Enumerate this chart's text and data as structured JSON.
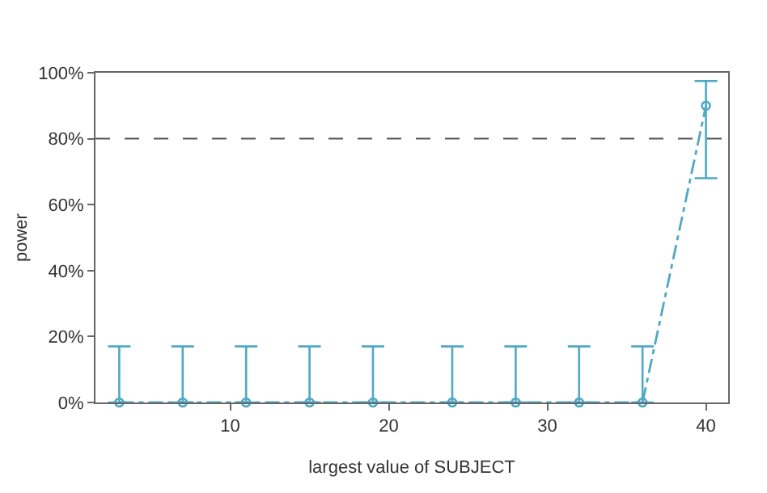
{
  "chart_data": {
    "type": "line",
    "xlabel": "largest value of SUBJECT",
    "ylabel": "power",
    "x": [
      3,
      7,
      11,
      15,
      19,
      24,
      28,
      32,
      36,
      40
    ],
    "values": [
      0,
      0,
      0,
      0,
      0,
      0,
      0,
      0,
      0,
      90
    ],
    "errors": [
      [
        0,
        17
      ],
      [
        0,
        17
      ],
      [
        0,
        17
      ],
      [
        0,
        17
      ],
      [
        0,
        17
      ],
      [
        0,
        17
      ],
      [
        0,
        17
      ],
      [
        0,
        17
      ],
      [
        0,
        17
      ],
      [
        68,
        97.5
      ]
    ],
    "color": "#4fa8c6",
    "xlim": [
      1.5,
      41.4
    ],
    "xticks": [
      10,
      20,
      30,
      40
    ],
    "ylim": [
      0,
      100
    ],
    "yticks": [
      {
        "value": 0,
        "label": "0%"
      },
      {
        "value": 20,
        "label": "20%"
      },
      {
        "value": 40,
        "label": "40%"
      },
      {
        "value": 60,
        "label": "60%"
      },
      {
        "value": 80,
        "label": "80%"
      },
      {
        "value": 100,
        "label": "100%"
      }
    ],
    "ref_lines": [
      {
        "axis": "y",
        "value": 80,
        "color": "#555555",
        "line_style": "dashed"
      }
    ],
    "marker": "circle",
    "line_style": "dashed"
  }
}
